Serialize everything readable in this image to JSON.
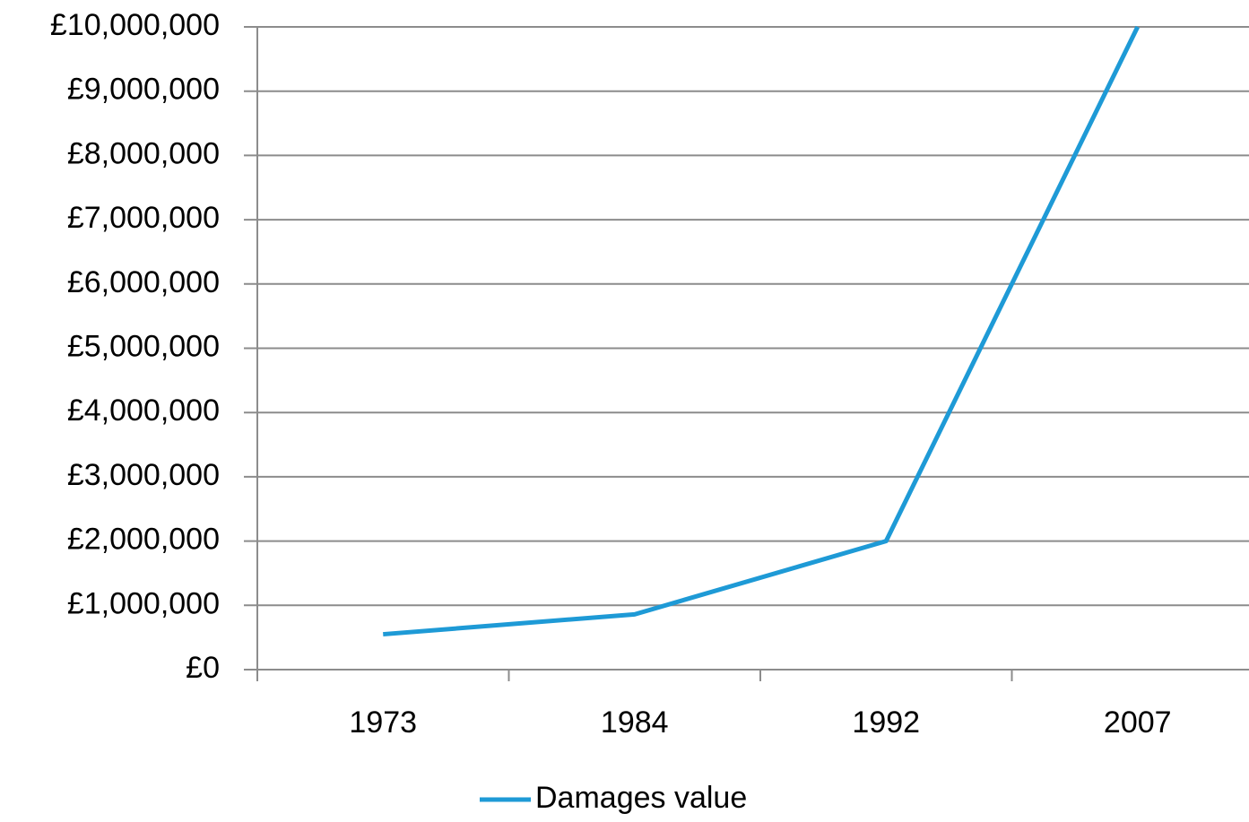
{
  "chart_data": {
    "type": "line",
    "categories": [
      "1973",
      "1984",
      "1992",
      "2007"
    ],
    "series": [
      {
        "name": "Damages value",
        "color": "#1e9ad6",
        "values": [
          550000,
          860000,
          2000000,
          10000000
        ]
      }
    ],
    "ylim": [
      0,
      10000000
    ],
    "yticks": [
      {
        "value": 0,
        "label": "£0"
      },
      {
        "value": 1000000,
        "label": "£1,000,000"
      },
      {
        "value": 2000000,
        "label": "£2,000,000"
      },
      {
        "value": 3000000,
        "label": "£3,000,000"
      },
      {
        "value": 4000000,
        "label": "£4,000,000"
      },
      {
        "value": 5000000,
        "label": "£5,000,000"
      },
      {
        "value": 6000000,
        "label": "£6,000,000"
      },
      {
        "value": 7000000,
        "label": "£7,000,000"
      },
      {
        "value": 8000000,
        "label": "£8,000,000"
      },
      {
        "value": 9000000,
        "label": "£9,000,000"
      },
      {
        "value": 10000000,
        "label": "£10,000,000"
      }
    ],
    "grid": true,
    "legend": "bottom"
  }
}
